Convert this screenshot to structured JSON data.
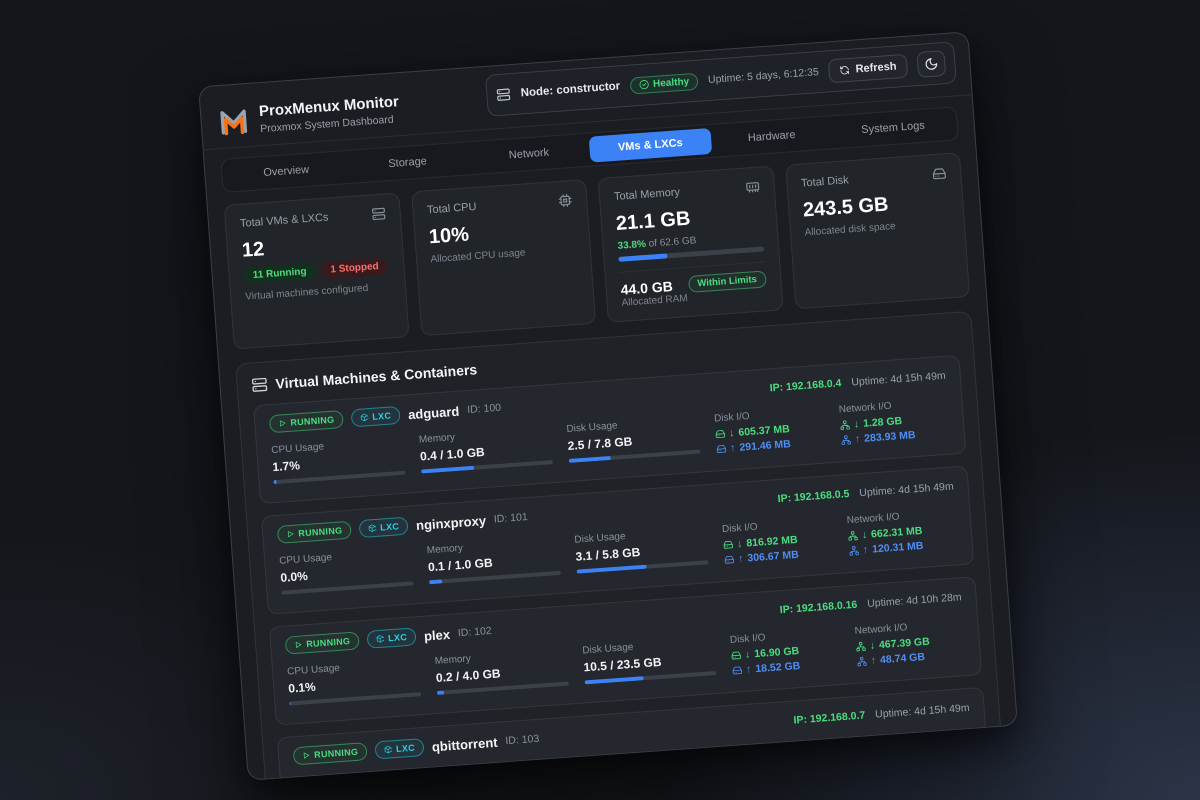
{
  "colors": {
    "accent_blue": "#3b82f6",
    "status_green": "#4ade80",
    "status_red": "#f87171",
    "lxc_cyan": "#22d3ee"
  },
  "header": {
    "app_title": "ProxMenux Monitor",
    "app_subtitle": "Proxmox System Dashboard",
    "node_label": "Node: constructor",
    "health_label": "Healthy",
    "uptime_label": "Uptime: 5 days, 6:12:35",
    "refresh_label": "Refresh"
  },
  "tabs": [
    {
      "label": "Overview"
    },
    {
      "label": "Storage"
    },
    {
      "label": "Network"
    },
    {
      "label": "VMs & LXCs"
    },
    {
      "label": "Hardware"
    },
    {
      "label": "System Logs"
    }
  ],
  "stats": {
    "vms": {
      "title": "Total VMs & LXCs",
      "value": "12",
      "running_badge": "11 Running",
      "stopped_badge": "1 Stopped",
      "subtitle": "Virtual machines configured"
    },
    "cpu": {
      "title": "Total CPU",
      "value": "10%",
      "subtitle": "Allocated CPU usage"
    },
    "memory": {
      "title": "Total Memory",
      "value": "21.1 GB",
      "percent_label": "33.8%",
      "of_label": " of 62.6 GB",
      "percent": 33.8,
      "allocated_value": "44.0 GB",
      "allocated_label": "Allocated RAM",
      "limit_badge": "Within Limits"
    },
    "disk": {
      "title": "Total Disk",
      "value": "243.5 GB",
      "subtitle": "Allocated disk space"
    }
  },
  "vm_section": {
    "title": "Virtual Machines & Containers",
    "labels": {
      "running": "RUNNING",
      "lxc": "LXC",
      "cpu": "CPU Usage",
      "memory": "Memory",
      "disk": "Disk Usage",
      "disk_io": "Disk I/O",
      "net_io": "Network I/O",
      "down_arrow": "↓",
      "up_arrow": "↑"
    },
    "items": [
      {
        "name": "adguard",
        "id": "ID: 100",
        "ip": "IP: 192.168.0.4",
        "uptime": "Uptime: 4d 15h 49m",
        "cpu": "1.7%",
        "cpu_pct": 2,
        "mem": "0.4 / 1.0 GB",
        "mem_pct": 40,
        "disk": "2.5 / 7.8 GB",
        "disk_pct": 32,
        "disk_down": "605.37 MB",
        "disk_up": "291.46 MB",
        "net_down": "1.28 GB",
        "net_up": "283.93 MB"
      },
      {
        "name": "nginxproxy",
        "id": "ID: 101",
        "ip": "IP: 192.168.0.5",
        "uptime": "Uptime: 4d 15h 49m",
        "cpu": "0.0%",
        "cpu_pct": 0,
        "mem": "0.1 / 1.0 GB",
        "mem_pct": 10,
        "disk": "3.1 / 5.8 GB",
        "disk_pct": 53,
        "disk_down": "816.92 MB",
        "disk_up": "306.67 MB",
        "net_down": "662.31 MB",
        "net_up": "120.31 MB"
      },
      {
        "name": "plex",
        "id": "ID: 102",
        "ip": "IP: 192.168.0.16",
        "uptime": "Uptime: 4d 10h 28m",
        "cpu": "0.1%",
        "cpu_pct": 1,
        "mem": "0.2 / 4.0 GB",
        "mem_pct": 5,
        "disk": "10.5 / 23.5 GB",
        "disk_pct": 45,
        "disk_down": "16.90 GB",
        "disk_up": "18.52 GB",
        "net_down": "467.39 GB",
        "net_up": "48.74 GB"
      },
      {
        "name": "qbittorrent",
        "id": "ID: 103",
        "ip": "IP: 192.168.0.7",
        "uptime": "Uptime: 4d 15h 49m"
      }
    ]
  }
}
